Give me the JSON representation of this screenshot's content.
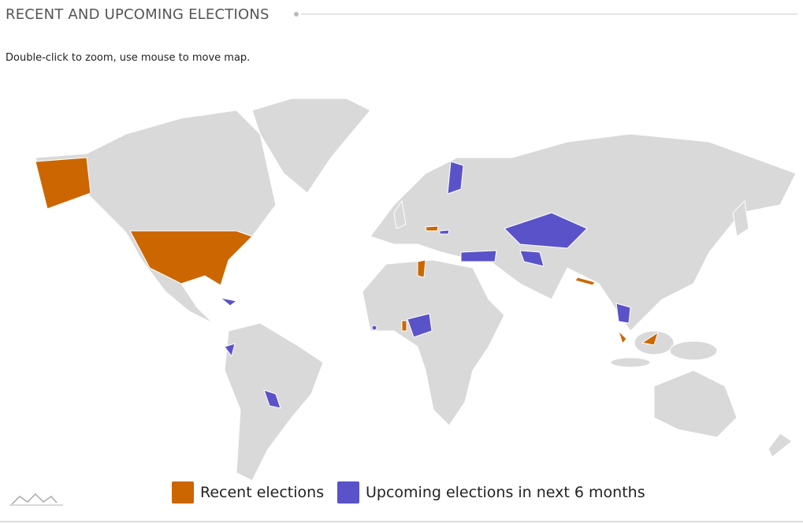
{
  "header": {
    "title": "RECENT AND UPCOMING ELECTIONS"
  },
  "instruction": "Double-click to zoom, use mouse to move map.",
  "legend": [
    {
      "label": "Recent elections",
      "color": "#cc6600"
    },
    {
      "label": "Upcoming elections in next 6 months",
      "color": "#5a52c9"
    }
  ]
}
